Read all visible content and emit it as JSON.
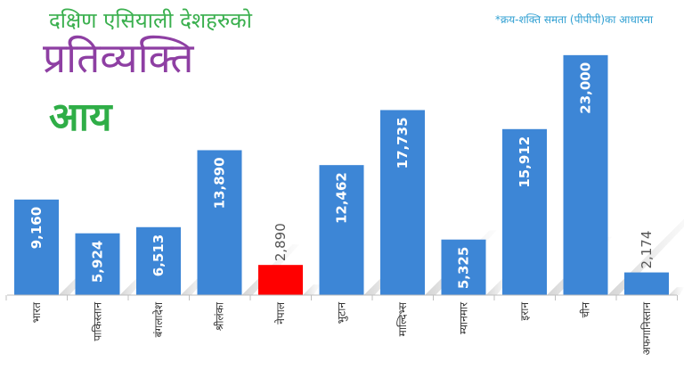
{
  "header": {
    "subtitle": "दक्षिण एसियाली देशहरुको",
    "title_line1": "प्रतिव्यक्ति",
    "title_line2": "आय",
    "note": "*क्रय-शक्ति समता (पीपीपी)का आधारमा"
  },
  "colors": {
    "bar": "#3d86d6",
    "highlight_bar": "#ff0000",
    "subtitle": "#3bb04f",
    "title": "#8e3fa3",
    "title2": "#2fae47",
    "note": "#2f9fd2"
  },
  "chart_data": {
    "type": "bar",
    "categories": [
      "भारत",
      "पाकिस्तान",
      "बंगलादेश",
      "श्रीलंका",
      "नेपाल",
      "भुटान",
      "माल्दिभ्स",
      "म्यानमार",
      "इरान",
      "चीन",
      "अफगानिस्तान"
    ],
    "values": [
      9160,
      5924,
      6513,
      13890,
      2890,
      12462,
      17735,
      5325,
      15912,
      23000,
      2174
    ],
    "value_labels": [
      "9,160",
      "5,924",
      "6,513",
      "13,890",
      "2,890",
      "12,462",
      "17,735",
      "5,325",
      "15,912",
      "23,000",
      "2,174"
    ],
    "highlight_category": "नेपाल",
    "ylim": [
      0,
      23500
    ],
    "grid": false,
    "legend": "none"
  }
}
